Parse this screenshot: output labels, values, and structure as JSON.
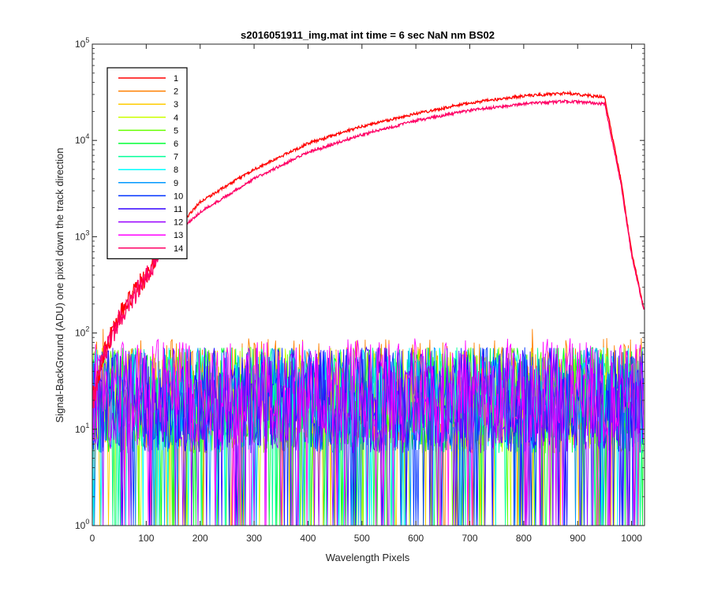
{
  "chart_data": {
    "type": "line",
    "title": "s2016051911_img.mat int time = 6 sec  NaN nm BS02",
    "xlabel": "Wavelength Pixels",
    "ylabel": "Signal-BackGround (ADU) one pixel down the track direction",
    "xlim": [
      0,
      1024
    ],
    "ylim": [
      1,
      100000
    ],
    "yscale": "log",
    "grid": false,
    "legend_position": "top-left",
    "x_ticks": [
      "0",
      "100",
      "200",
      "300",
      "400",
      "500",
      "600",
      "700",
      "800",
      "900",
      "1000"
    ],
    "x_tick_values": [
      0,
      100,
      200,
      300,
      400,
      500,
      600,
      700,
      800,
      900,
      1000
    ],
    "y_ticks": [
      {
        "base": "10",
        "exp": "0"
      },
      {
        "base": "10",
        "exp": "1"
      },
      {
        "base": "10",
        "exp": "2"
      },
      {
        "base": "10",
        "exp": "3"
      },
      {
        "base": "10",
        "exp": "4"
      },
      {
        "base": "10",
        "exp": "5"
      }
    ],
    "y_tick_values": [
      1,
      10,
      100,
      1000,
      10000,
      100000
    ],
    "series": [
      {
        "name": "1",
        "color": "#ff0000",
        "kind": "signal",
        "x": [
          0,
          20,
          50,
          100,
          150,
          200,
          300,
          400,
          500,
          600,
          700,
          800,
          880,
          950,
          980,
          1000,
          1023
        ],
        "y": [
          20,
          60,
          150,
          400,
          1100,
          2300,
          5000,
          9300,
          14000,
          19000,
          24500,
          29000,
          31000,
          28000,
          4000,
          700,
          180
        ]
      },
      {
        "name": "2",
        "color": "#ff8000",
        "kind": "noise",
        "y_center": 25,
        "y_peak": 110
      },
      {
        "name": "3",
        "color": "#ffcc00",
        "kind": "noise",
        "y_center": 20,
        "y_peak": 70
      },
      {
        "name": "4",
        "color": "#ccff00",
        "kind": "noise",
        "y_center": 20,
        "y_peak": 70
      },
      {
        "name": "5",
        "color": "#66ff00",
        "kind": "noise",
        "y_center": 20,
        "y_peak": 70
      },
      {
        "name": "6",
        "color": "#00ff33",
        "kind": "noise",
        "y_center": 20,
        "y_peak": 70
      },
      {
        "name": "7",
        "color": "#00ff99",
        "kind": "noise",
        "y_center": 20,
        "y_peak": 70
      },
      {
        "name": "8",
        "color": "#00ffff",
        "kind": "noise",
        "y_center": 20,
        "y_peak": 70
      },
      {
        "name": "9",
        "color": "#0099ff",
        "kind": "noise",
        "y_center": 20,
        "y_peak": 70
      },
      {
        "name": "10",
        "color": "#0033ff",
        "kind": "noise",
        "y_center": 20,
        "y_peak": 70
      },
      {
        "name": "11",
        "color": "#3300ff",
        "kind": "noise",
        "y_center": 20,
        "y_peak": 70
      },
      {
        "name": "12",
        "color": "#9900ff",
        "kind": "noise",
        "y_center": 20,
        "y_peak": 70
      },
      {
        "name": "13",
        "color": "#ff00ff",
        "kind": "noise",
        "y_center": 25,
        "y_peak": 80
      },
      {
        "name": "14",
        "color": "#ff0066",
        "kind": "signal",
        "x": [
          0,
          20,
          50,
          100,
          150,
          200,
          300,
          400,
          500,
          600,
          700,
          800,
          880,
          950,
          980,
          1000,
          1023
        ],
        "y": [
          18,
          55,
          140,
          380,
          1000,
          1800,
          4000,
          7500,
          11500,
          16000,
          20500,
          24000,
          25500,
          24000,
          3600,
          650,
          170
        ]
      }
    ]
  }
}
